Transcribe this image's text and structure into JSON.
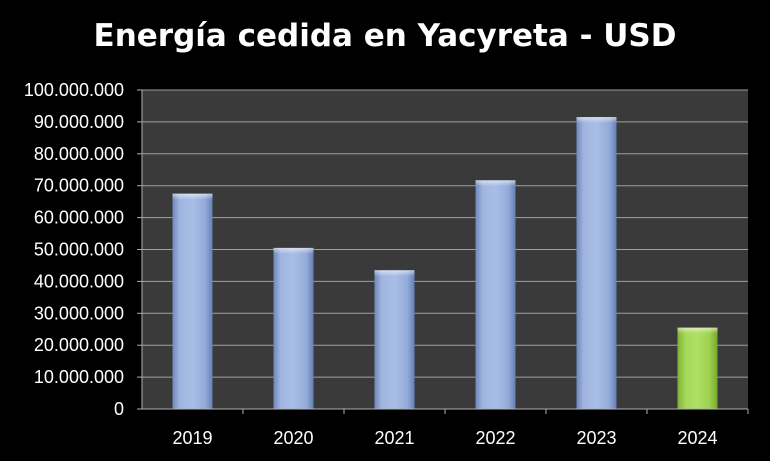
{
  "chart_data": {
    "type": "bar",
    "title": "Energía cedida en Yacyreta - USD",
    "categories": [
      "2019",
      "2020",
      "2021",
      "2022",
      "2023",
      "2024"
    ],
    "values": [
      67500000,
      50500000,
      43500000,
      71700000,
      91500000,
      25500000
    ],
    "xlabel": "",
    "ylabel": "",
    "ylim": [
      0,
      100000000
    ],
    "yticks": [
      "0",
      "10.000.000",
      "20.000.000",
      "30.000.000",
      "40.000.000",
      "50.000.000",
      "60.000.000",
      "70.000.000",
      "80.000.000",
      "90.000.000",
      "100.000.000"
    ],
    "grid": true,
    "legend": "none",
    "bar_colors": [
      "#8fa8d8",
      "#8fa8d8",
      "#8fa8d8",
      "#8fa8d8",
      "#8fa8d8",
      "#9ad04a"
    ],
    "plot_background": "#3a3a3a",
    "gridline_color": "#a0a0a0"
  }
}
